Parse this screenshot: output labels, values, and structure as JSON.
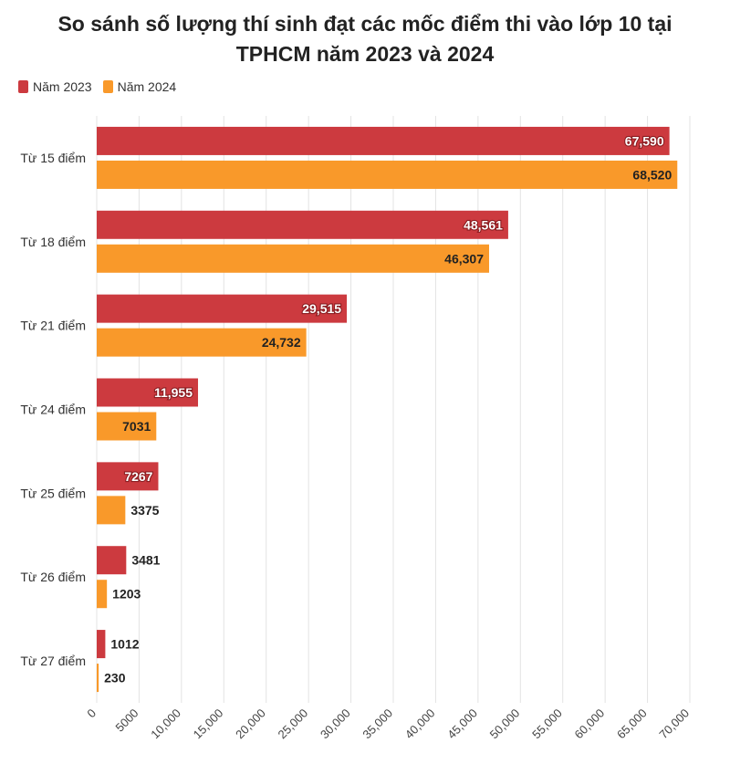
{
  "chart_data": {
    "type": "bar",
    "orientation": "horizontal",
    "title": "So sánh số lượng thí sinh đạt các mốc điểm thi vào lớp 10 tại TPHCM năm 2023 và 2024",
    "categories": [
      "Từ 15 điểm",
      "Từ 18 điểm",
      "Từ 21 điểm",
      "Từ 24 điểm",
      "Từ 25 điểm",
      "Từ 26 điểm",
      "Từ 27 điểm"
    ],
    "series": [
      {
        "name": "Năm 2023",
        "color": "#cc3a3f",
        "values": [
          67590,
          48561,
          29515,
          11955,
          7267,
          3481,
          1012
        ],
        "labels": [
          "67,590",
          "48,561",
          "29,515",
          "11,955",
          "7267",
          "3481",
          "1012"
        ]
      },
      {
        "name": "Năm 2024",
        "color": "#f9992a",
        "values": [
          68520,
          46307,
          24732,
          7031,
          3375,
          1203,
          230
        ],
        "labels": [
          "68,520",
          "46,307",
          "24,732",
          "7031",
          "3375",
          "1203",
          "230"
        ]
      }
    ],
    "xlim": [
      0,
      70000
    ],
    "xticks": [
      0,
      5000,
      10000,
      15000,
      20000,
      25000,
      30000,
      35000,
      40000,
      45000,
      50000,
      55000,
      60000,
      65000,
      70000
    ],
    "xtick_labels": [
      "0",
      "5000",
      "10,000",
      "15,000",
      "20,000",
      "25,000",
      "30,000",
      "35,000",
      "40,000",
      "45,000",
      "50,000",
      "55,000",
      "60,000",
      "65,000",
      "70,000"
    ],
    "grid": true,
    "legend_position": "top-left"
  }
}
